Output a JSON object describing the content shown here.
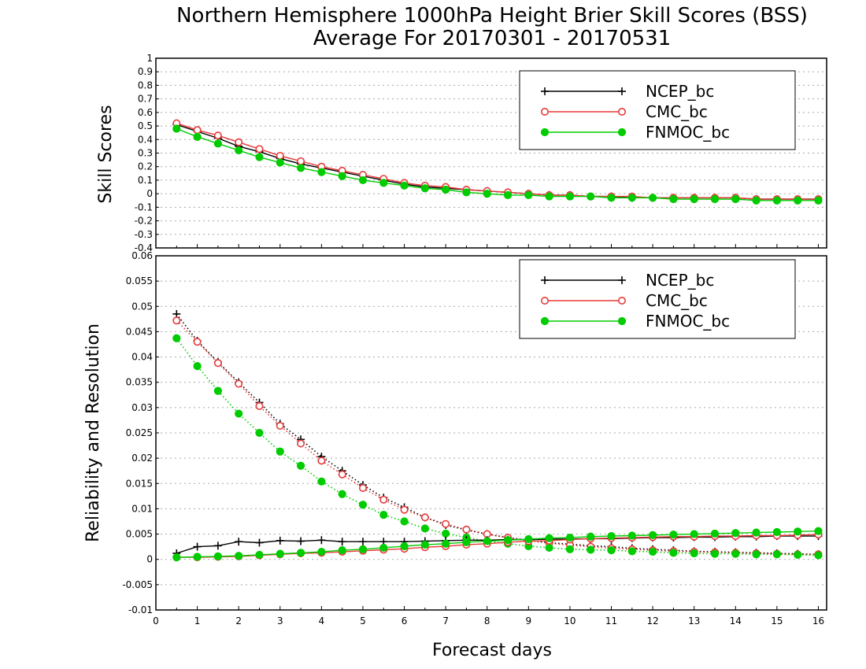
{
  "title_line1": "Northern Hemisphere 1000hPa Height Brier Skill Scores (BSS)",
  "title_line2": "Average For 20170301 - 20170531",
  "colors": {
    "NCEP_bc": "#000000",
    "CMC_bc": "#e8393a",
    "FNMOC_bc": "#00cc00"
  },
  "chart_data": [
    {
      "type": "line",
      "ylabel": "Skill Scores",
      "ylim": [
        -0.4,
        1
      ],
      "yticks": [
        "-0.4",
        "-0.3",
        "-0.2",
        "-0.1",
        "0",
        "0.1",
        "0.2",
        "0.3",
        "0.4",
        "0.5",
        "0.6",
        "0.7",
        "0.8",
        "0.9",
        "1"
      ],
      "grid": true,
      "legend_position": "top-right",
      "x": [
        0.5,
        1,
        1.5,
        2,
        2.5,
        3,
        3.5,
        4,
        4.5,
        5,
        5.5,
        6,
        6.5,
        7,
        7.5,
        8,
        8.5,
        9,
        9.5,
        10,
        10.5,
        11,
        11.5,
        12,
        12.5,
        13,
        13.5,
        14,
        14.5,
        15,
        15.5,
        16
      ],
      "series": [
        {
          "name": "NCEP_bc",
          "marker": "plus",
          "style": "solid",
          "values": [
            0.51,
            0.46,
            0.41,
            0.35,
            0.31,
            0.26,
            0.22,
            0.19,
            0.16,
            0.13,
            0.1,
            0.07,
            0.05,
            0.04,
            0.03,
            0.02,
            0.01,
            0,
            -0.01,
            -0.01,
            -0.02,
            -0.02,
            -0.03,
            -0.03,
            -0.03,
            -0.03,
            -0.03,
            -0.03,
            -0.04,
            -0.04,
            -0.04,
            -0.04
          ]
        },
        {
          "name": "CMC_bc",
          "marker": "circle",
          "style": "solid",
          "values": [
            0.52,
            0.47,
            0.43,
            0.38,
            0.33,
            0.28,
            0.24,
            0.2,
            0.17,
            0.14,
            0.11,
            0.08,
            0.06,
            0.05,
            0.03,
            0.02,
            0.01,
            0,
            -0.01,
            -0.01,
            -0.02,
            -0.02,
            -0.02,
            -0.03,
            -0.03,
            -0.03,
            -0.03,
            -0.03,
            -0.04,
            -0.04,
            -0.04,
            -0.04
          ]
        },
        {
          "name": "FNMOC_bc",
          "marker": "dot",
          "style": "solid",
          "values": [
            0.48,
            0.42,
            0.37,
            0.32,
            0.27,
            0.23,
            0.19,
            0.16,
            0.13,
            0.1,
            0.08,
            0.06,
            0.04,
            0.03,
            0.01,
            0,
            -0.01,
            -0.01,
            -0.02,
            -0.02,
            -0.02,
            -0.03,
            -0.03,
            -0.03,
            -0.04,
            -0.04,
            -0.04,
            -0.04,
            -0.05,
            -0.05,
            -0.05,
            -0.05
          ]
        }
      ]
    },
    {
      "type": "line",
      "xlabel": "Forecast days",
      "ylabel": "Reliability and Resolution",
      "xlim": [
        0,
        16.2
      ],
      "xticks": [
        "0",
        "1",
        "2",
        "3",
        "4",
        "5",
        "6",
        "7",
        "8",
        "9",
        "10",
        "11",
        "12",
        "13",
        "14",
        "15",
        "16"
      ],
      "ylim": [
        -0.01,
        0.06
      ],
      "yticks": [
        "-0.01",
        "-0.005",
        "0",
        "0.005",
        "0.01",
        "0.015",
        "0.02",
        "0.025",
        "0.03",
        "0.035",
        "0.04",
        "0.045",
        "0.05",
        "0.055",
        "0.06"
      ],
      "grid": true,
      "legend_position": "top-right",
      "x": [
        0.5,
        1,
        1.5,
        2,
        2.5,
        3,
        3.5,
        4,
        4.5,
        5,
        5.5,
        6,
        6.5,
        7,
        7.5,
        8,
        8.5,
        9,
        9.5,
        10,
        10.5,
        11,
        11.5,
        12,
        12.5,
        13,
        13.5,
        14,
        14.5,
        15,
        15.5,
        16
      ],
      "series": [
        {
          "name": "NCEP_bc",
          "marker": "plus",
          "style": "dotted",
          "label": "resolution",
          "values": [
            0.0485,
            0.0432,
            0.039,
            0.035,
            0.031,
            0.0268,
            0.0237,
            0.0203,
            0.0175,
            0.0147,
            0.0122,
            0.0103,
            0.0083,
            0.0068,
            0.0058,
            0.005,
            0.0043,
            0.0038,
            0.0033,
            0.003,
            0.0027,
            0.0025,
            0.0022,
            0.002,
            0.0018,
            0.0016,
            0.0015,
            0.0014,
            0.0013,
            0.0012,
            0.0011,
            0.001
          ]
        },
        {
          "name": "CMC_bc",
          "marker": "circle",
          "style": "dotted",
          "label": "resolution",
          "values": [
            0.0472,
            0.043,
            0.0388,
            0.0347,
            0.0303,
            0.0264,
            0.0229,
            0.0195,
            0.0168,
            0.0141,
            0.0118,
            0.0098,
            0.0083,
            0.007,
            0.0059,
            0.005,
            0.0043,
            0.0037,
            0.0032,
            0.0028,
            0.0025,
            0.0022,
            0.002,
            0.0018,
            0.0016,
            0.0015,
            0.0014,
            0.0013,
            0.0012,
            0.0011,
            0.001,
            0.001
          ]
        },
        {
          "name": "FNMOC_bc",
          "marker": "dot",
          "style": "dotted",
          "label": "resolution",
          "values": [
            0.0437,
            0.0382,
            0.0333,
            0.0288,
            0.025,
            0.0213,
            0.0185,
            0.0154,
            0.0129,
            0.0108,
            0.0088,
            0.0075,
            0.0061,
            0.0051,
            0.0043,
            0.0036,
            0.0031,
            0.0026,
            0.0023,
            0.002,
            0.0019,
            0.0018,
            0.0016,
            0.0015,
            0.0013,
            0.0012,
            0.0011,
            0.0011,
            0.001,
            0.001,
            0.0009,
            0.0008
          ]
        },
        {
          "name": "NCEP_bc",
          "marker": "plus",
          "style": "solid",
          "label": "reliability",
          "values": [
            0.0012,
            0.0025,
            0.0027,
            0.0035,
            0.0033,
            0.0037,
            0.0036,
            0.0038,
            0.0035,
            0.0035,
            0.0035,
            0.0035,
            0.0036,
            0.0037,
            0.0038,
            0.0038,
            0.0039,
            0.0039,
            0.004,
            0.004,
            0.0041,
            0.0041,
            0.0042,
            0.0043,
            0.0043,
            0.0044,
            0.0044,
            0.0045,
            0.0045,
            0.0046,
            0.0046,
            0.0046
          ]
        },
        {
          "name": "CMC_bc",
          "marker": "circle",
          "style": "solid",
          "label": "reliability",
          "values": [
            0.0004,
            0.0004,
            0.0005,
            0.0006,
            0.0008,
            0.001,
            0.0012,
            0.0013,
            0.0015,
            0.0017,
            0.0019,
            0.0021,
            0.0024,
            0.0026,
            0.0029,
            0.0031,
            0.0034,
            0.0036,
            0.0037,
            0.0039,
            0.0041,
            0.0042,
            0.0043,
            0.0044,
            0.0045,
            0.0045,
            0.0046,
            0.0046,
            0.0047,
            0.0047,
            0.0048,
            0.0049
          ]
        },
        {
          "name": "FNMOC_bc",
          "marker": "dot",
          "style": "solid",
          "label": "reliability",
          "values": [
            0.0004,
            0.0005,
            0.0006,
            0.0007,
            0.0009,
            0.0011,
            0.0013,
            0.0015,
            0.0018,
            0.002,
            0.0023,
            0.0026,
            0.0029,
            0.0031,
            0.0034,
            0.0036,
            0.0038,
            0.004,
            0.0042,
            0.0043,
            0.0045,
            0.0046,
            0.0047,
            0.0048,
            0.0049,
            0.005,
            0.0051,
            0.0052,
            0.0053,
            0.0054,
            0.0055,
            0.0056
          ]
        }
      ]
    }
  ]
}
